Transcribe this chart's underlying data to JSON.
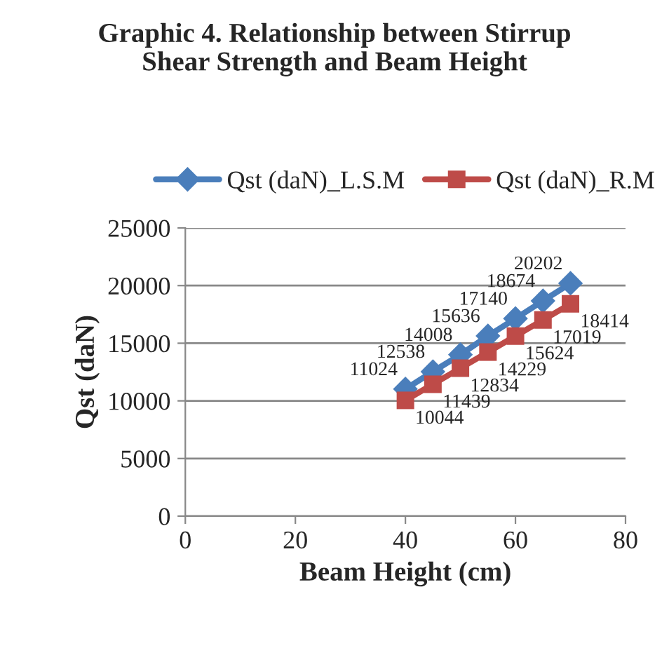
{
  "chart_data": {
    "type": "line",
    "title": "Graphic 4. Relationship between Stirrup\nShear Strength and Beam Height",
    "xlabel": "Beam Height (cm)",
    "ylabel": "Qst (daN)",
    "x": [
      40,
      45,
      50,
      55,
      60,
      65,
      70
    ],
    "series": [
      {
        "name": "Qst (daN)_L.S.M",
        "color": "#4a7ebb",
        "marker": "diamond",
        "values": [
          11024,
          12538,
          14008,
          15636,
          17140,
          18674,
          20202
        ]
      },
      {
        "name": "Qst (daN)_R.M",
        "color": "#be4b48",
        "marker": "square",
        "values": [
          10044,
          11439,
          12834,
          14229,
          15624,
          17019,
          18414
        ]
      }
    ],
    "xlim": [
      0,
      80
    ],
    "xticks": [
      0,
      20,
      40,
      60,
      80
    ],
    "ylim": [
      0,
      25000
    ],
    "yticks": [
      0,
      5000,
      10000,
      15000,
      20000,
      25000
    ],
    "grid": "y",
    "legend": "top",
    "data_labels": true
  }
}
